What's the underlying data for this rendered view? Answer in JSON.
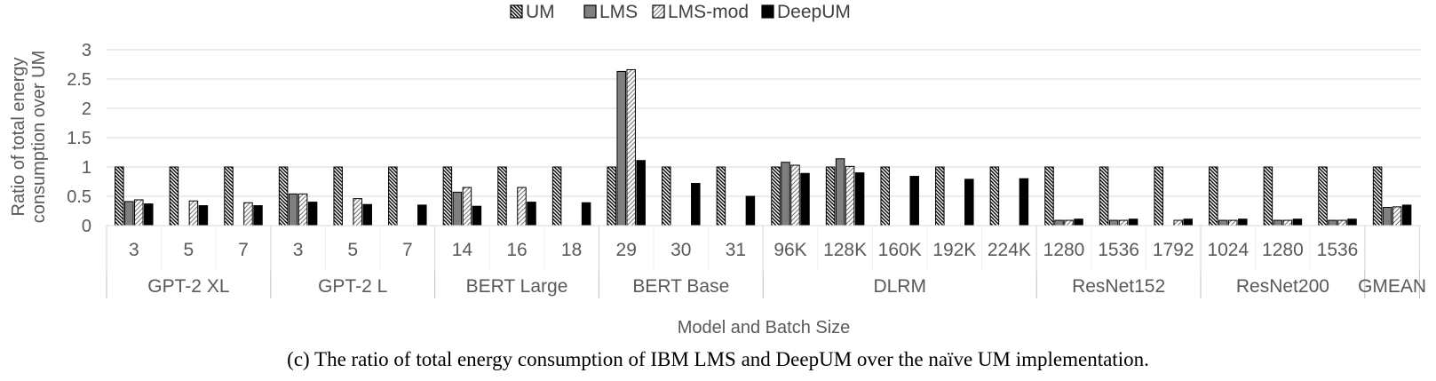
{
  "chart_data": {
    "type": "bar",
    "ylabel": "Ratio of total energy consumption  over UM",
    "xlabel": "Model and Batch Size",
    "ylim": [
      0,
      3
    ],
    "yticks": [
      "0",
      "0.5",
      "1",
      "1.5",
      "2",
      "2.5",
      "3"
    ],
    "grid": true,
    "legend_position": "top-center",
    "series": [
      {
        "name": "UM",
        "key": "UM"
      },
      {
        "name": "LMS",
        "key": "LMS"
      },
      {
        "name": "LMS-mod",
        "key": "LMSmod"
      },
      {
        "name": "DeepUM",
        "key": "DeepUM"
      }
    ],
    "groups": [
      {
        "name": "GPT-2 XL",
        "categories": [
          {
            "label": "3",
            "values": [
              1,
              0.41,
              0.44,
              0.37
            ]
          },
          {
            "label": "5",
            "values": [
              1,
              null,
              0.42,
              0.34
            ]
          },
          {
            "label": "7",
            "values": [
              1,
              null,
              0.39,
              0.34
            ]
          }
        ]
      },
      {
        "name": "GPT-2 L",
        "categories": [
          {
            "label": "3",
            "values": [
              1,
              0.54,
              0.54,
              0.4
            ]
          },
          {
            "label": "5",
            "values": [
              1,
              null,
              0.46,
              0.36
            ]
          },
          {
            "label": "7",
            "values": [
              1,
              null,
              null,
              0.35
            ]
          }
        ]
      },
      {
        "name": "BERT Large",
        "categories": [
          {
            "label": "14",
            "values": [
              1,
              0.57,
              0.65,
              0.33
            ]
          },
          {
            "label": "16",
            "values": [
              1,
              null,
              0.65,
              0.4
            ]
          },
          {
            "label": "18",
            "values": [
              1,
              null,
              null,
              0.39
            ]
          }
        ]
      },
      {
        "name": "BERT Base",
        "categories": [
          {
            "label": "29",
            "values": [
              1,
              2.63,
              2.66,
              1.11
            ]
          },
          {
            "label": "30",
            "values": [
              1,
              null,
              null,
              0.72
            ]
          },
          {
            "label": "31",
            "values": [
              1,
              null,
              null,
              0.5
            ]
          }
        ]
      },
      {
        "name": "DLRM",
        "categories": [
          {
            "label": "96K",
            "values": [
              1,
              1.08,
              1.03,
              0.89
            ]
          },
          {
            "label": "128K",
            "values": [
              1,
              1.14,
              1.01,
              0.9
            ]
          },
          {
            "label": "160K",
            "values": [
              1,
              null,
              null,
              0.84
            ]
          },
          {
            "label": "192K",
            "values": [
              1,
              null,
              null,
              0.79
            ]
          },
          {
            "label": "224K",
            "values": [
              1,
              null,
              null,
              0.8
            ]
          }
        ]
      },
      {
        "name": "ResNet152",
        "categories": [
          {
            "label": "1280",
            "values": [
              1,
              0.09,
              0.09,
              0.11
            ]
          },
          {
            "label": "1536",
            "values": [
              1,
              0.09,
              0.09,
              0.11
            ]
          },
          {
            "label": "1792",
            "values": [
              1,
              null,
              0.09,
              0.11
            ]
          }
        ]
      },
      {
        "name": "ResNet200",
        "categories": [
          {
            "label": "1024",
            "values": [
              1,
              0.09,
              0.09,
              0.11
            ]
          },
          {
            "label": "1280",
            "values": [
              1,
              0.09,
              0.09,
              0.11
            ]
          },
          {
            "label": "1536",
            "values": [
              1,
              0.09,
              0.09,
              0.11
            ]
          }
        ]
      },
      {
        "name": "GMEAN",
        "categories": [
          {
            "label": "",
            "values": [
              1,
              0.31,
              0.32,
              0.35
            ]
          }
        ]
      }
    ]
  },
  "caption": "(c) The ratio of total energy consumption of IBM LMS and DeepUM over the naïve UM implementation."
}
